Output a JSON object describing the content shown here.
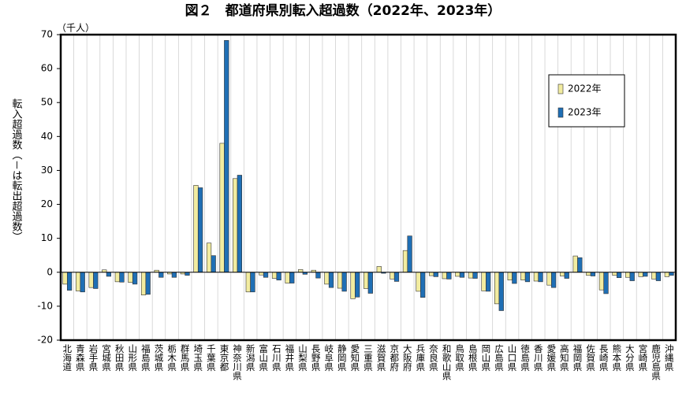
{
  "chart_data": {
    "type": "bar",
    "title": "図２　都道府県別転入超過数（2022年、2023年）",
    "unit": "（千人）",
    "y_label": "転入超過数（－は転出超過数）",
    "categories": [
      "北海道",
      "青森県",
      "岩手県",
      "宮城県",
      "秋田県",
      "山形県",
      "福島県",
      "茨城県",
      "栃木県",
      "群馬県",
      "埼玉県",
      "千葉県",
      "東京都",
      "神奈川県",
      "新潟県",
      "富山県",
      "石川県",
      "福井県",
      "山梨県",
      "長野県",
      "岐阜県",
      "静岡県",
      "愛知県",
      "三重県",
      "滋賀県",
      "京都府",
      "大阪府",
      "兵庫県",
      "奈良県",
      "和歌山県",
      "鳥取県",
      "島根県",
      "岡山県",
      "広島県",
      "山口県",
      "徳島県",
      "香川県",
      "愛媛県",
      "高知県",
      "福岡県",
      "佐賀県",
      "長崎県",
      "熊本県",
      "大分県",
      "宮崎県",
      "鹿児島県",
      "沖縄県"
    ],
    "series": [
      {
        "name": "2022年",
        "color": "#f2eca0",
        "values": [
          -3.5,
          -5.5,
          -4.5,
          0.7,
          -2.8,
          -3,
          -6.7,
          0.6,
          -0.5,
          -0.5,
          25.6,
          8.6,
          38.0,
          27.6,
          -5.8,
          -0.8,
          -1.8,
          -3.2,
          0.8,
          0.6,
          -3.5,
          -4.7,
          -7.8,
          -4.8,
          1.7,
          -2,
          6.4,
          -5.6,
          -1,
          -1.9,
          -1.2,
          -1.7,
          -5.5,
          -9.3,
          -2.3,
          -2.3,
          -2.6,
          -3.8,
          -1.1,
          4.8,
          -0.9,
          -5.2,
          -0.9,
          -1.5,
          -1.3,
          -2,
          -1.3
        ]
      },
      {
        "name": "2023年",
        "color": "#1f6fb5",
        "values": [
          -5.3,
          -5.8,
          -4.8,
          -1.2,
          -2.9,
          -3.5,
          -6.5,
          -1.5,
          -1.5,
          -0.9,
          24.9,
          4.9,
          68.3,
          28.6,
          -5.8,
          -1.5,
          -2.3,
          -3.2,
          -0.6,
          -1.7,
          -4.5,
          -5.6,
          -7.3,
          -6.2,
          -0.3,
          -2.7,
          10.7,
          -7.4,
          -1.3,
          -2,
          -1.5,
          -1.8,
          -5.6,
          -11.3,
          -3.3,
          -2.8,
          -2.8,
          -4.5,
          -1.8,
          4.3,
          -1.1,
          -6.3,
          -1.6,
          -2.5,
          -1.2,
          -2.5,
          -0.9
        ]
      }
    ],
    "ylim": [
      -20,
      70
    ],
    "yticks": [
      -20,
      -10,
      0,
      10,
      20,
      30,
      40,
      50,
      60,
      70
    ]
  }
}
